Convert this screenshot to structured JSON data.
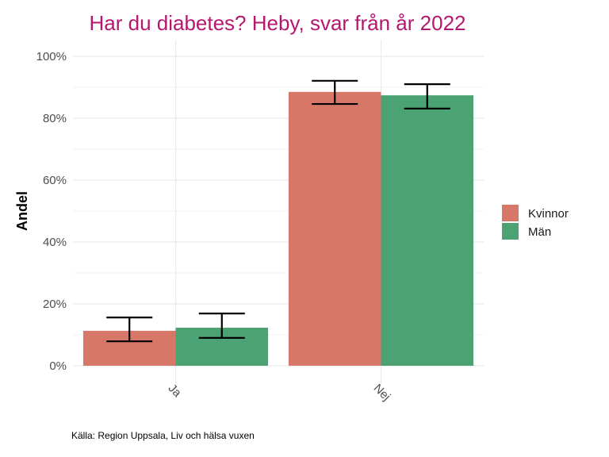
{
  "chart_data": {
    "type": "bar",
    "title": "Har du diabetes? Heby, svar från år 2022",
    "xlabel": "",
    "ylabel": "Andel",
    "categories": [
      "Ja",
      "Nej"
    ],
    "series": [
      {
        "name": "Kvinnor",
        "color": "#d77768",
        "values": [
          0.113,
          0.885
        ],
        "ci_low": [
          0.079,
          0.846
        ],
        "ci_high": [
          0.156,
          0.921
        ]
      },
      {
        "name": "Män",
        "color": "#4ba272",
        "values": [
          0.123,
          0.874
        ],
        "ci_low": [
          0.09,
          0.831
        ],
        "ci_high": [
          0.169,
          0.91
        ]
      }
    ],
    "ylim": [
      0,
      1
    ],
    "yticks": [
      0,
      0.2,
      0.4,
      0.6,
      0.8,
      1.0
    ],
    "ytick_labels": [
      "0%",
      "20%",
      "40%",
      "60%",
      "80%",
      "100%"
    ],
    "grid": true,
    "legend": "right",
    "caption": "Källa: Region Uppsala, Liv och hälsa vuxen"
  }
}
